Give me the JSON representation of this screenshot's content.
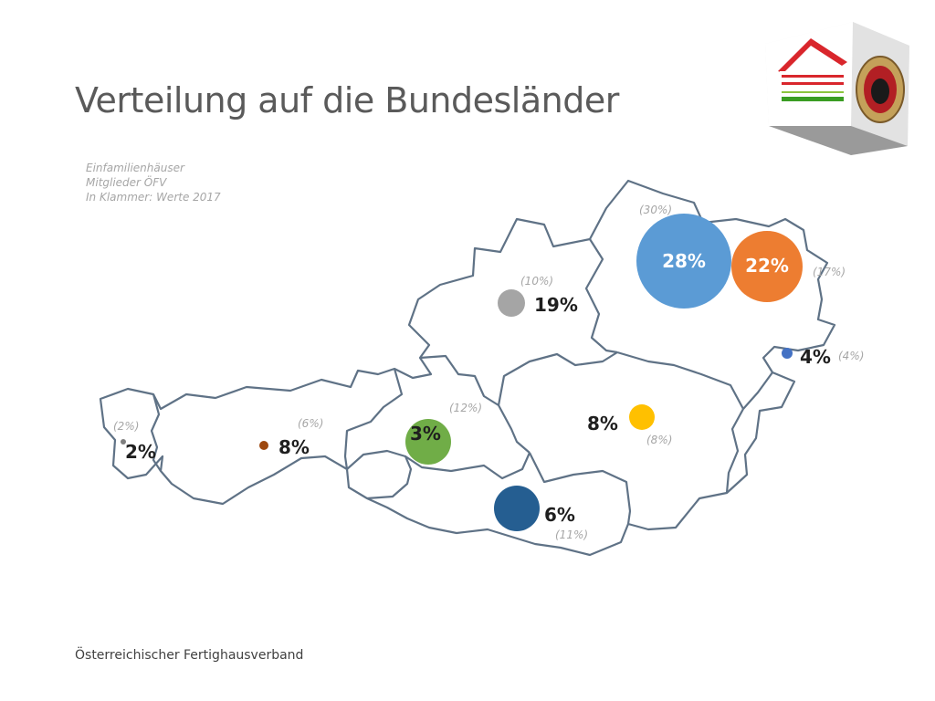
{
  "header": {
    "title": "Verteilung auf die Bundesländer"
  },
  "legend": {
    "line1": "Einfamilienhäuser",
    "line2": "Mitglieder ÖFV",
    "line3": "In Klammer: Werte 2017"
  },
  "footer": {
    "text": "Österreichischer Fertighausverband"
  },
  "logo": {
    "icon": "fertighaus-quality-seal-icon"
  },
  "map": {
    "outline_color": "#5f7286",
    "bubbles": [
      {
        "id": "vorarlberg",
        "value": 2,
        "value_label": "2%",
        "prev_label": "(2%)",
        "color": "#7f7f7f"
      },
      {
        "id": "tirol",
        "value": 8,
        "value_label": "8%",
        "prev_label": "(6%)",
        "color": "#9e480e"
      },
      {
        "id": "salzburg",
        "value": 3,
        "value_label": "3%",
        "prev_label": "(12%)",
        "color": "#70ad47"
      },
      {
        "id": "oberoesterreich",
        "value": 19,
        "value_label": "19%",
        "prev_label": "(10%)",
        "color": "#a5a5a5"
      },
      {
        "id": "niederoesterreich",
        "value": 28,
        "value_label": "28%",
        "prev_label": "(30%)",
        "color": "#5b9bd5"
      },
      {
        "id": "wien",
        "value": 22,
        "value_label": "22%",
        "prev_label": "(17%)",
        "color": "#ed7d31"
      },
      {
        "id": "burgenland",
        "value": 4,
        "value_label": "4%",
        "prev_label": "(4%)",
        "color": "#4472c4"
      },
      {
        "id": "steiermark",
        "value": 8,
        "value_label": "8%",
        "prev_label": "(8%)",
        "color": "#ffc000"
      },
      {
        "id": "kaernten",
        "value": 6,
        "value_label": "6%",
        "prev_label": "(11%)",
        "color": "#255e91"
      }
    ]
  }
}
